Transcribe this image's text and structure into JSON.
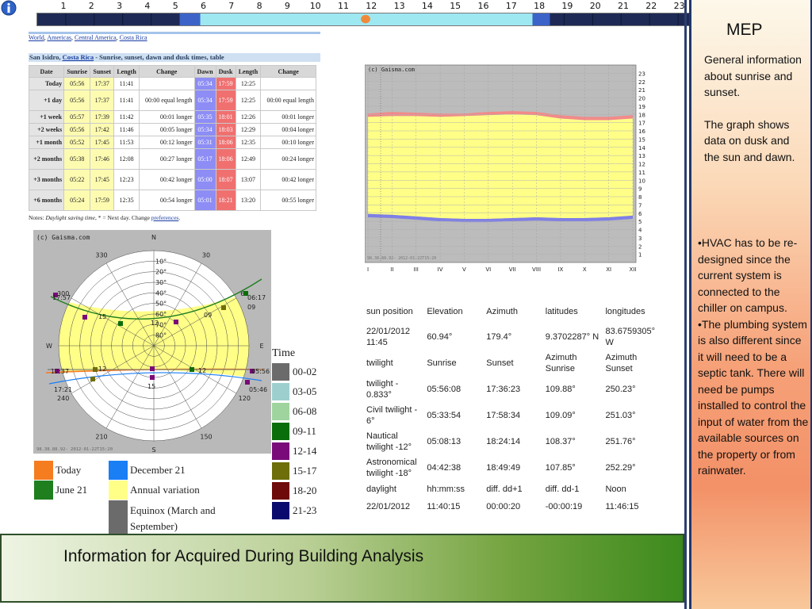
{
  "hour_bar": {
    "hours": [
      "1",
      "2",
      "3",
      "4",
      "5",
      "6",
      "7",
      "8",
      "9",
      "10",
      "11",
      "12",
      "13",
      "14",
      "15",
      "16",
      "17",
      "18",
      "19",
      "20",
      "21",
      "22",
      "23"
    ],
    "colors": {
      "night": "#1e2a55",
      "twilight": "#3b63c8",
      "day": "#9ee8f2",
      "sun_marker": "#f08a3a"
    }
  },
  "breadcrumb": {
    "items": [
      "World",
      "Americas",
      "Central America",
      "Costa Rica"
    ]
  },
  "sun_table": {
    "title_prefix": "San Isidro,",
    "title_link": "Costa Rica",
    "title_suffix": "- Sunrise, sunset, dawn and dusk times, table",
    "headers": [
      "Date",
      "Sunrise",
      "Sunset",
      "Length",
      "Change",
      "Dawn",
      "Dusk",
      "Length",
      "Change"
    ],
    "rows": [
      {
        "date": "Today",
        "sunrise": "05:56",
        "sunset": "17:37",
        "length": "11:41",
        "change": "",
        "dawn": "05:34",
        "dusk": "17:59",
        "length2": "12:25",
        "change2": ""
      },
      {
        "date": "+1 day",
        "sunrise": "05:56",
        "sunset": "17:37",
        "length": "11:41",
        "change": "00:00 equal length",
        "dawn": "05:34",
        "dusk": "17:59",
        "length2": "12:25",
        "change2": "00:00 equal length"
      },
      {
        "date": "+1 week",
        "sunrise": "05:57",
        "sunset": "17:39",
        "length": "11:42",
        "change": "00:01 longer",
        "dawn": "05:35",
        "dusk": "18:01",
        "length2": "12:26",
        "change2": "00:01 longer"
      },
      {
        "date": "+2 weeks",
        "sunrise": "05:56",
        "sunset": "17:42",
        "length": "11:46",
        "change": "00:05 longer",
        "dawn": "05:34",
        "dusk": "18:03",
        "length2": "12:29",
        "change2": "00:04 longer"
      },
      {
        "date": "+1 month",
        "sunrise": "05:52",
        "sunset": "17:45",
        "length": "11:53",
        "change": "00:12 longer",
        "dawn": "05:31",
        "dusk": "18:06",
        "length2": "12:35",
        "change2": "00:10 longer"
      },
      {
        "date": "+2 months",
        "sunrise": "05:38",
        "sunset": "17:46",
        "length": "12:08",
        "change": "00:27 longer",
        "dawn": "05:17",
        "dusk": "18:06",
        "length2": "12:49",
        "change2": "00:24 longer"
      },
      {
        "date": "+3 months",
        "sunrise": "05:22",
        "sunset": "17:45",
        "length": "12:23",
        "change": "00:42 longer",
        "dawn": "05:00",
        "dusk": "18:07",
        "length2": "13:07",
        "change2": "00:42 longer"
      },
      {
        "date": "+6 months",
        "sunrise": "05:24",
        "sunset": "17:59",
        "length": "12:35",
        "change": "00:54 longer",
        "dawn": "05:01",
        "dusk": "18:21",
        "length2": "13:20",
        "change2": "00:55 longer"
      }
    ],
    "notes_prefix": "Notes:",
    "notes_italic": "Daylight saving time",
    "notes_mid": ", * = Next day. Change",
    "notes_link": "preferences",
    "notes_end": ".",
    "colors": {
      "sun": "#fdfbb0",
      "dawn": "#8d8df5",
      "dusk": "#f07070"
    }
  },
  "annual_chart": {
    "credit": "(c) Gaisma.com",
    "footer_text": "98.38.88.92- 2012-01-22T15:20",
    "chart_data": {
      "type": "area",
      "x": [
        "I",
        "II",
        "III",
        "IV",
        "V",
        "VI",
        "VII",
        "VIII",
        "IX",
        "X",
        "XI",
        "XII"
      ],
      "ylim": [
        0,
        24
      ],
      "yticks": [
        "1",
        "2",
        "3",
        "4",
        "5",
        "6",
        "7",
        "8",
        "9",
        "10",
        "11",
        "12",
        "13",
        "14",
        "15",
        "16",
        "17",
        "18",
        "19",
        "20",
        "21",
        "22",
        "23"
      ],
      "series": [
        {
          "name": "Dusk",
          "values": [
            18.1,
            18.3,
            18.2,
            18.1,
            18.1,
            18.3,
            18.4,
            18.3,
            17.9,
            17.7,
            17.7,
            17.9
          ]
        },
        {
          "name": "Sunset",
          "values": [
            17.7,
            17.8,
            17.8,
            17.7,
            17.8,
            17.9,
            18.0,
            17.9,
            17.5,
            17.3,
            17.3,
            17.5
          ]
        },
        {
          "name": "Sunrise",
          "values": [
            5.9,
            5.8,
            5.6,
            5.4,
            5.3,
            5.3,
            5.4,
            5.5,
            5.4,
            5.4,
            5.5,
            5.7
          ]
        },
        {
          "name": "Dawn",
          "values": [
            5.5,
            5.4,
            5.2,
            5.0,
            4.9,
            4.9,
            5.0,
            5.1,
            5.0,
            5.0,
            5.1,
            5.3
          ]
        }
      ],
      "colors": {
        "night": "#bcbcbc",
        "day": "#ffff88",
        "dusk_band": "#f28a8a",
        "dawn_band": "#7f7fe6"
      }
    }
  },
  "polar_chart": {
    "credit": "(c) Gaisma.com",
    "footer_text": "98.38.88.92- 2012-01-22T15:20",
    "directions": {
      "n": "N",
      "e": "E",
      "s": "S",
      "w": "W"
    },
    "azimuth_labels": [
      "30",
      "60",
      "120",
      "150",
      "210",
      "240",
      "300",
      "330"
    ],
    "elevation_labels": [
      "10°",
      "20°",
      "30°",
      "40°",
      "50°",
      "60°",
      "70°",
      "80°"
    ],
    "path_labels": [
      "17:57",
      "06:17",
      "17:37",
      "05:56",
      "17:21",
      "05:46",
      "15",
      "12",
      "09",
      "12",
      "15",
      "12",
      "09"
    ]
  },
  "day_legend": {
    "items": [
      {
        "label": "Today",
        "color": "#f57c1f"
      },
      {
        "label": "December 21",
        "color": "#1a7ef5"
      },
      {
        "label": "June 21",
        "color": "#1f7f1f"
      },
      {
        "label": "Annual variation",
        "color": "#ffff88"
      },
      {
        "label": "Equinox (March and September)",
        "color": "#6b6b6b"
      }
    ]
  },
  "time_legend": {
    "title": "Time",
    "items": [
      {
        "label": "00-02",
        "color": "#6b6b6b"
      },
      {
        "label": "03-05",
        "color": "#9ecfcf"
      },
      {
        "label": "06-08",
        "color": "#9fd49f"
      },
      {
        "label": "09-11",
        "color": "#0a6e0a"
      },
      {
        "label": "12-14",
        "color": "#7a0a7a"
      },
      {
        "label": "15-17",
        "color": "#6e6e0a"
      },
      {
        "label": "18-20",
        "color": "#6e0a0a"
      },
      {
        "label": "21-23",
        "color": "#0a0a6e"
      }
    ]
  },
  "data_table": {
    "rows": [
      [
        "sun position",
        "Elevation",
        "Azimuth",
        "latitudes",
        "longitudes"
      ],
      [
        "22/01/2012 11:45",
        "60.94°",
        "179.4°",
        "9.3702287° N",
        "83.6759305° W"
      ],
      [
        "twilight",
        "Sunrise",
        "Sunset",
        "Azimuth Sunrise",
        "Azimuth Sunset"
      ],
      [
        "twilight - 0.833°",
        "05:56:08",
        "17:36:23",
        "109.88°",
        "250.23°"
      ],
      [
        "Civil twilight - 6°",
        "05:33:54",
        "17:58:34",
        "109.09°",
        "251.03°"
      ],
      [
        "Nautical twilight -12°",
        "05:08:13",
        "18:24:14",
        "108.37°",
        "251.76°"
      ],
      [
        "Astronomical twilight -18°",
        "04:42:38",
        "18:49:49",
        "107.85°",
        "252.29°"
      ],
      [
        "daylight",
        "hh:mm:ss",
        "diff. dd+1",
        "diff. dd-1",
        "Noon"
      ],
      [
        "22/01/2012",
        "11:40:15",
        "00:00:20",
        "-00:00:19",
        "11:46:15"
      ]
    ]
  },
  "banner": {
    "title": "Information for Acquired During Building Analysis"
  },
  "side_panel": {
    "title": "MEP",
    "general": "General information about sunrise and sunset.",
    "graph": "The graph shows data on dusk and the sun and dawn.",
    "bullets": [
      "•HVAC has to be re-designed since the current system is connected to the chiller on campus.",
      "•The plumbing system is also different since it will need to be a septic tank.  There will need be pumps  installed to control the input of water from the available sources on the property or  from rainwater."
    ]
  }
}
